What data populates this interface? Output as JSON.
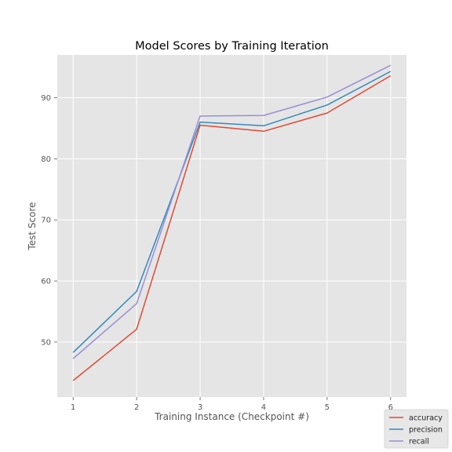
{
  "chart_data": {
    "type": "line",
    "title": "Model Scores by Training Iteration",
    "xlabel": "Training Instance (Checkpoint #)",
    "ylabel": "Test Score",
    "x": [
      1,
      2,
      3,
      4,
      5,
      6
    ],
    "xlim": [
      0.75,
      6.25
    ],
    "ylim": [
      41,
      97
    ],
    "xticks": [
      "1",
      "2",
      "3",
      "4",
      "5",
      "6"
    ],
    "yticks": [
      "50",
      "60",
      "70",
      "80",
      "90"
    ],
    "ytick_values": [
      50,
      60,
      70,
      80,
      90
    ],
    "grid": true,
    "legend_position": "bottom-right",
    "series": [
      {
        "name": "accuracy",
        "color": "#e24a33",
        "values": [
          43.7,
          52.1,
          85.5,
          84.5,
          87.5,
          93.6
        ]
      },
      {
        "name": "precision",
        "color": "#348abd",
        "values": [
          48.3,
          58.3,
          86.0,
          85.4,
          88.8,
          94.3
        ]
      },
      {
        "name": "recall",
        "color": "#988ed5",
        "values": [
          47.3,
          56.3,
          87.0,
          87.1,
          90.1,
          95.3
        ]
      }
    ]
  }
}
